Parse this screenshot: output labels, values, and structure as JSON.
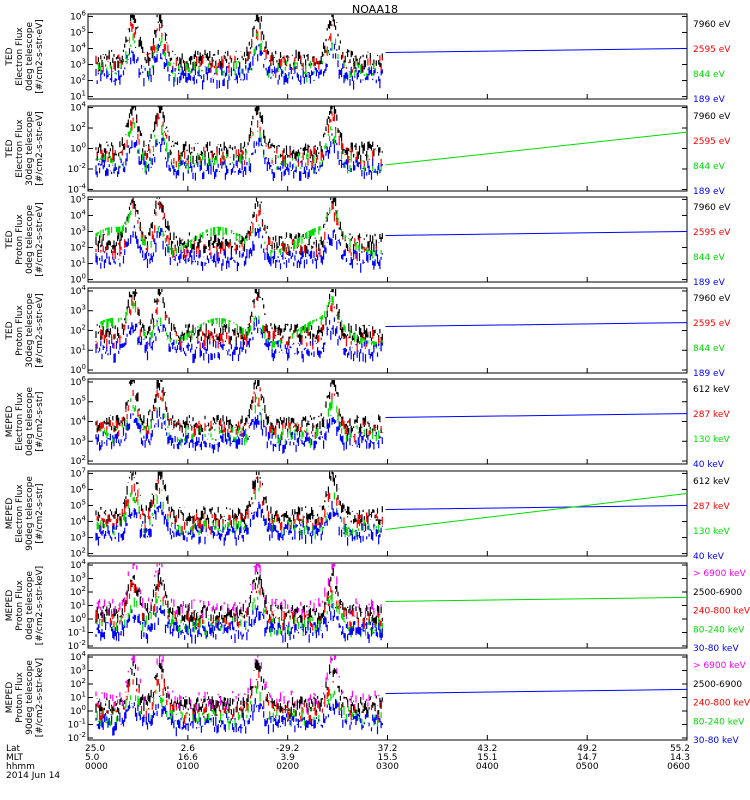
{
  "title": "NOAA18",
  "colors": {
    "blue": "#0000ff",
    "red": "#ff0000",
    "green": "#00dd00",
    "black": "#000000",
    "magenta": "#ff00ff",
    "frame": "#000000"
  },
  "chart_data": [
    {
      "type": "line",
      "panel": 1,
      "ylabel": [
        "TED",
        "Electron Flux",
        "0deg telescope",
        "[#/cm2-s-str-eV]"
      ],
      "y_tick_exponents": [
        1,
        2,
        3,
        4,
        5,
        6
      ],
      "log_scale": true,
      "series": [
        {
          "name": "7960 eV",
          "color": "black"
        },
        {
          "name": "2595 eV",
          "color": "red"
        },
        {
          "name": "844 eV",
          "color": "green"
        },
        {
          "name": "189 eV",
          "color": "blue"
        }
      ]
    },
    {
      "type": "line",
      "panel": 2,
      "ylabel": [
        "TED",
        "Electron Flux",
        "30deg telescope",
        "[#/cm2-s-str-eV]"
      ],
      "y_tick_exponents": [
        -4,
        -2,
        0,
        2,
        4
      ],
      "log_scale": true,
      "series": [
        {
          "name": "7960 eV",
          "color": "black"
        },
        {
          "name": "2595 eV",
          "color": "red"
        },
        {
          "name": "844 eV",
          "color": "green"
        },
        {
          "name": "189 eV",
          "color": "blue"
        }
      ]
    },
    {
      "type": "line",
      "panel": 3,
      "ylabel": [
        "TED",
        "Proton Flux",
        "0deg telescope",
        "[#/cm2-s-str-eV]"
      ],
      "y_tick_exponents": [
        0,
        1,
        2,
        3,
        4,
        5
      ],
      "log_scale": true,
      "series": [
        {
          "name": "7960 eV",
          "color": "black"
        },
        {
          "name": "2595 eV",
          "color": "red"
        },
        {
          "name": "844 eV",
          "color": "green"
        },
        {
          "name": "189 eV",
          "color": "blue"
        }
      ]
    },
    {
      "type": "line",
      "panel": 4,
      "ylabel": [
        "TED",
        "Proton Flux",
        "30deg telescope",
        "[#/cm2-s-str-eV]"
      ],
      "y_tick_exponents": [
        0,
        1,
        2,
        3,
        4
      ],
      "log_scale": true,
      "series": [
        {
          "name": "7960 eV",
          "color": "black"
        },
        {
          "name": "2595 eV",
          "color": "red"
        },
        {
          "name": "844 eV",
          "color": "green"
        },
        {
          "name": "189 eV",
          "color": "blue"
        }
      ]
    },
    {
      "type": "line",
      "panel": 5,
      "ylabel": [
        "MEPED",
        "Electron Flux",
        "0deg telescope",
        "[#/cm2-s-str]"
      ],
      "y_tick_exponents": [
        2,
        3,
        4,
        5,
        6
      ],
      "log_scale": true,
      "series": [
        {
          "name": "612 keV",
          "color": "black"
        },
        {
          "name": "287 keV",
          "color": "red"
        },
        {
          "name": "130 keV",
          "color": "green"
        },
        {
          "name": "40 keV",
          "color": "blue"
        }
      ]
    },
    {
      "type": "line",
      "panel": 6,
      "ylabel": [
        "MEPED",
        "Electron Flux",
        "90deg telescope",
        "[#/cm2-s-str]"
      ],
      "y_tick_exponents": [
        2,
        3,
        4,
        5,
        6,
        7
      ],
      "log_scale": true,
      "series": [
        {
          "name": "612 keV",
          "color": "black"
        },
        {
          "name": "287 keV",
          "color": "red"
        },
        {
          "name": "130 keV",
          "color": "green"
        },
        {
          "name": "40 keV",
          "color": "blue"
        }
      ]
    },
    {
      "type": "line",
      "panel": 7,
      "ylabel": [
        "MEPED",
        "Proton Flux",
        "0deg telescope",
        "[#/cm2-s-str-keV]"
      ],
      "y_tick_exponents": [
        -2,
        -1,
        0,
        1,
        2,
        3,
        4
      ],
      "log_scale": true,
      "series": [
        {
          "name": "> 6900 keV",
          "color": "magenta"
        },
        {
          "name": "2500-6900",
          "color": "black"
        },
        {
          "name": "240-800 keV",
          "color": "red"
        },
        {
          "name": "80-240 keV",
          "color": "green"
        },
        {
          "name": "30-80 keV",
          "color": "blue"
        }
      ]
    },
    {
      "type": "line",
      "panel": 8,
      "ylabel": [
        "MEPED",
        "Proton Flux",
        "90deg telescope",
        "[#/cm2-s-str-keV]"
      ],
      "y_tick_exponents": [
        -2,
        -1,
        0,
        1,
        2,
        3,
        4
      ],
      "log_scale": true,
      "series": [
        {
          "name": "> 6900 keV",
          "color": "magenta"
        },
        {
          "name": "2500-6900",
          "color": "black"
        },
        {
          "name": "240-800 keV",
          "color": "red"
        },
        {
          "name": "80-240 keV",
          "color": "green"
        },
        {
          "name": "30-80 keV",
          "color": "blue"
        }
      ]
    }
  ],
  "x_axis": {
    "row_labels": [
      "Lat",
      "MLT",
      "hhmm",
      "2014 Jun 14"
    ],
    "ticks": [
      {
        "hours": 0,
        "lat": "25.0",
        "mlt": "5.0",
        "hhmm": "0000"
      },
      {
        "hours": 1,
        "lat": "2.6",
        "mlt": "16.6",
        "hhmm": "0100"
      },
      {
        "hours": 2,
        "lat": "-29.2",
        "mlt": "3.9",
        "hhmm": "0200"
      },
      {
        "hours": 3,
        "lat": "37.2",
        "mlt": "15.5",
        "hhmm": "0300"
      },
      {
        "hours": 4,
        "lat": "43.2",
        "mlt": "15.1",
        "hhmm": "0400"
      },
      {
        "hours": 5,
        "lat": "49.2",
        "mlt": "14.7",
        "hhmm": "0500"
      },
      {
        "hours": 6,
        "lat": "55.2",
        "mlt": "14.3",
        "hhmm": "0600"
      }
    ]
  }
}
